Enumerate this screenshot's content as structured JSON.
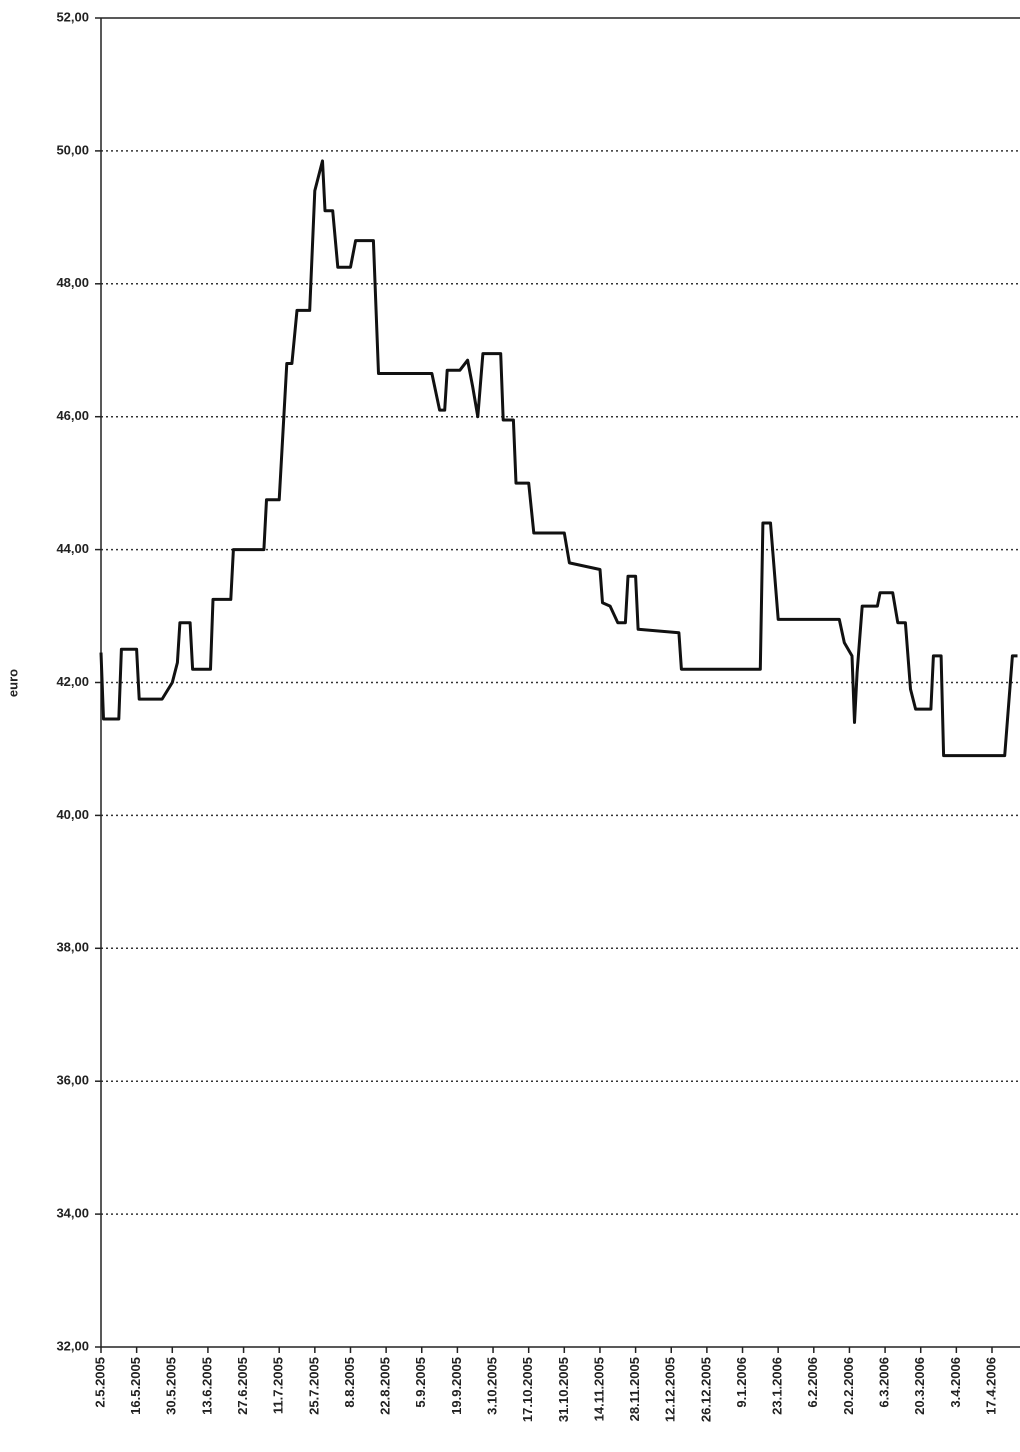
{
  "chart_data": {
    "type": "line",
    "ylabel": "euro",
    "x": [
      "2.5.2005",
      "3.5.2005",
      "9.5.2005",
      "10.5.2005",
      "16.5.2005",
      "17.5.2005",
      "26.5.2005",
      "30.5.2005",
      "1.6.2005",
      "2.6.2005",
      "6.6.2005",
      "7.6.2005",
      "14.6.2005",
      "15.6.2005",
      "22.6.2005",
      "23.6.2005",
      "5.7.2005",
      "6.7.2005",
      "11.7.2005",
      "14.7.2005",
      "16.7.2005",
      "18.7.2005",
      "23.7.2005",
      "25.7.2005",
      "28.7.2005",
      "29.7.2005",
      "1.8.2005",
      "3.8.2005",
      "8.8.2005",
      "10.8.2005",
      "17.8.2005",
      "19.8.2005",
      "9.9.2005",
      "12.9.2005",
      "14.9.2005",
      "15.9.2005",
      "20.9.2005",
      "23.9.2005",
      "25.9.2005",
      "27.9.2005",
      "29.9.2005",
      "6.10.2005",
      "7.10.2005",
      "11.10.2005",
      "12.10.2005",
      "17.10.2005",
      "19.10.2005",
      "31.10.2005",
      "2.11.2005",
      "14.11.2005",
      "15.11.2005",
      "18.11.2005",
      "21.11.2005",
      "24.11.2005",
      "25.11.2005",
      "28.11.2005",
      "29.11.2005",
      "15.12.2005",
      "16.12.2005",
      "16.1.2006",
      "17.1.2006",
      "20.1.2006",
      "23.1.2006",
      "16.2.2006",
      "18.2.2006",
      "21.2.2006",
      "22.2.2006",
      "23.2.2006",
      "25.2.2006",
      "3.3.2006",
      "4.3.2006",
      "9.3.2006",
      "11.3.2006",
      "14.3.2006",
      "16.3.2006",
      "18.3.2006",
      "24.3.2006",
      "25.3.2006",
      "28.3.2006",
      "29.3.2006",
      "22.4.2006",
      "25.4.2006",
      "27.4.2006"
    ],
    "series": [
      {
        "color": "#111111",
        "values": [
          42.45,
          41.45,
          41.45,
          42.5,
          42.5,
          41.75,
          41.75,
          42.0,
          42.3,
          42.9,
          42.9,
          42.2,
          42.2,
          43.25,
          43.25,
          44.0,
          44.0,
          44.75,
          44.75,
          46.8,
          46.8,
          47.6,
          47.6,
          49.4,
          49.85,
          49.1,
          49.1,
          48.25,
          48.25,
          48.65,
          48.65,
          46.65,
          46.65,
          46.1,
          46.1,
          46.7,
          46.7,
          46.85,
          46.45,
          46.0,
          46.95,
          46.95,
          45.95,
          45.95,
          45.0,
          45.0,
          44.25,
          44.25,
          43.8,
          43.7,
          43.2,
          43.15,
          42.9,
          42.9,
          43.6,
          43.6,
          42.8,
          42.75,
          42.2,
          42.2,
          44.4,
          44.4,
          42.95,
          42.95,
          42.6,
          42.4,
          41.4,
          42.15,
          43.15,
          43.15,
          43.35,
          43.35,
          42.9,
          42.9,
          41.9,
          41.6,
          41.6,
          42.4,
          42.4,
          40.9,
          40.9,
          42.4,
          42.4
        ]
      }
    ],
    "xlim": [
      "2.5.2005",
      "28.4.2006"
    ],
    "xticks": [
      "2.5.2005",
      "16.5.2005",
      "30.5.2005",
      "13.6.2005",
      "27.6.2005",
      "11.7.2005",
      "25.7.2005",
      "8.8.2005",
      "22.8.2005",
      "5.9.2005",
      "19.9.2005",
      "3.10.2005",
      "17.10.2005",
      "31.10.2005",
      "14.11.2005",
      "28.11.2005",
      "12.12.2005",
      "26.12.2005",
      "9.1.2006",
      "23.1.2006",
      "6.2.2006",
      "20.2.2006",
      "6.3.2006",
      "20.3.2006",
      "3.4.2006",
      "17.4.2006"
    ],
    "ylim": [
      32,
      52
    ],
    "yticks": [
      {
        "value": 32,
        "label": "32,00"
      },
      {
        "value": 34,
        "label": "34,00"
      },
      {
        "value": 36,
        "label": "36,00"
      },
      {
        "value": 38,
        "label": "38,00"
      },
      {
        "value": 40,
        "label": "40,00"
      },
      {
        "value": 42,
        "label": "42,00"
      },
      {
        "value": 44,
        "label": "44,00"
      },
      {
        "value": 46,
        "label": "46,00"
      },
      {
        "value": 48,
        "label": "48,00"
      },
      {
        "value": 50,
        "label": "50,00"
      },
      {
        "value": 52,
        "label": "52,00"
      }
    ],
    "grid": true
  }
}
